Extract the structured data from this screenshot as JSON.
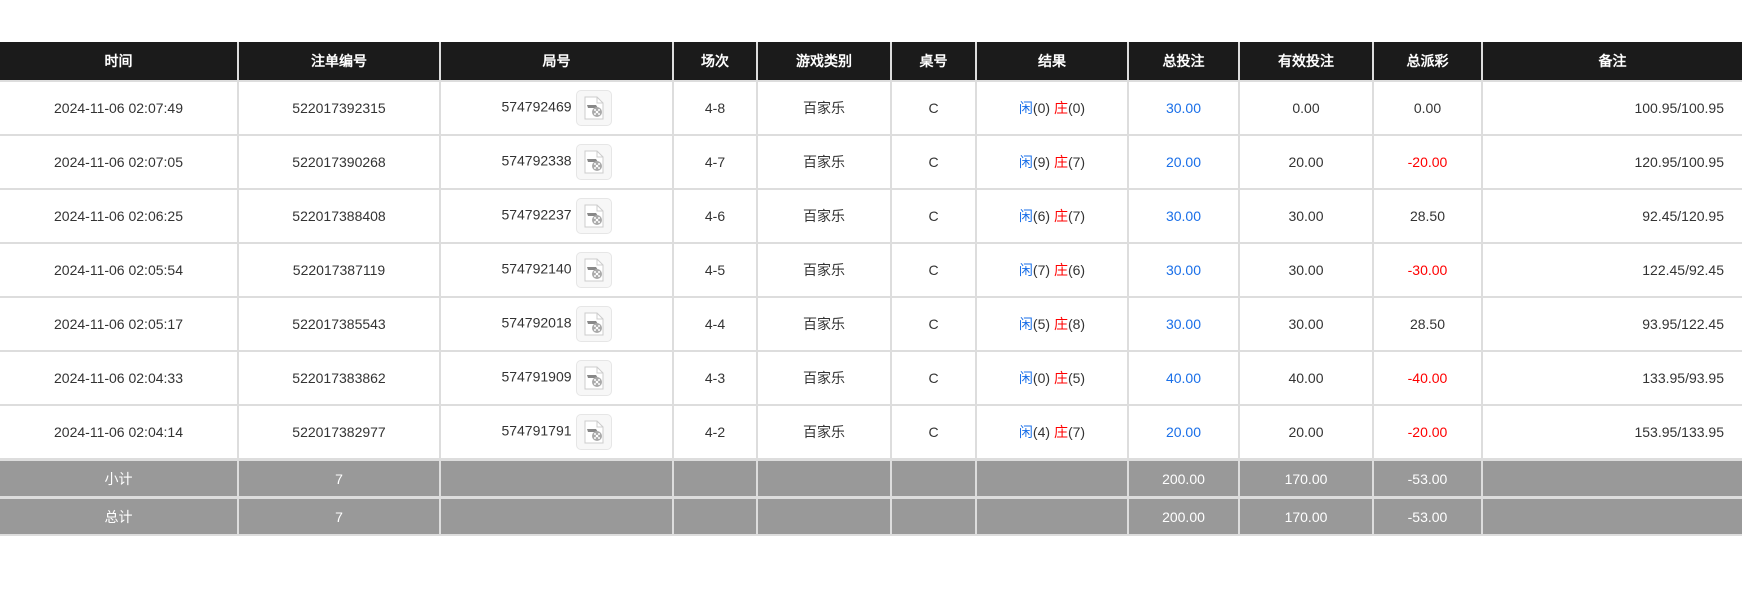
{
  "headers": [
    "时间",
    "注单编号",
    "局号",
    "场次",
    "游戏类别",
    "桌号",
    "结果",
    "总投注",
    "有效投注",
    "总派彩",
    "备注"
  ],
  "colors": {
    "player": "#1a6fe8",
    "banker": "#ff0000",
    "negative": "#ff0000",
    "header_bg": "#1b1b1b",
    "summary_bg": "#999999"
  },
  "rows": [
    {
      "time": "2024-11-06 02:07:49",
      "bet_no": "522017392315",
      "round": "574792469",
      "shoe": "4-8",
      "game": "百家乐",
      "table": "C",
      "player": "闲",
      "player_score": "(0)",
      "banker": "庄",
      "banker_score": "(0)",
      "total_bet": "30.00",
      "valid_bet": "0.00",
      "payout": "0.00",
      "payout_negative": false,
      "note": "100.95/100.95"
    },
    {
      "time": "2024-11-06 02:07:05",
      "bet_no": "522017390268",
      "round": "574792338",
      "shoe": "4-7",
      "game": "百家乐",
      "table": "C",
      "player": "闲",
      "player_score": "(9)",
      "banker": "庄",
      "banker_score": "(7)",
      "total_bet": "20.00",
      "valid_bet": "20.00",
      "payout": "-20.00",
      "payout_negative": true,
      "note": "120.95/100.95"
    },
    {
      "time": "2024-11-06 02:06:25",
      "bet_no": "522017388408",
      "round": "574792237",
      "shoe": "4-6",
      "game": "百家乐",
      "table": "C",
      "player": "闲",
      "player_score": "(6)",
      "banker": "庄",
      "banker_score": "(7)",
      "total_bet": "30.00",
      "valid_bet": "30.00",
      "payout": "28.50",
      "payout_negative": false,
      "note": "92.45/120.95"
    },
    {
      "time": "2024-11-06 02:05:54",
      "bet_no": "522017387119",
      "round": "574792140",
      "shoe": "4-5",
      "game": "百家乐",
      "table": "C",
      "player": "闲",
      "player_score": "(7)",
      "banker": "庄",
      "banker_score": "(6)",
      "total_bet": "30.00",
      "valid_bet": "30.00",
      "payout": "-30.00",
      "payout_negative": true,
      "note": "122.45/92.45"
    },
    {
      "time": "2024-11-06 02:05:17",
      "bet_no": "522017385543",
      "round": "574792018",
      "shoe": "4-4",
      "game": "百家乐",
      "table": "C",
      "player": "闲",
      "player_score": "(5)",
      "banker": "庄",
      "banker_score": "(8)",
      "total_bet": "30.00",
      "valid_bet": "30.00",
      "payout": "28.50",
      "payout_negative": false,
      "note": "93.95/122.45"
    },
    {
      "time": "2024-11-06 02:04:33",
      "bet_no": "522017383862",
      "round": "574791909",
      "shoe": "4-3",
      "game": "百家乐",
      "table": "C",
      "player": "闲",
      "player_score": "(0)",
      "banker": "庄",
      "banker_score": "(5)",
      "total_bet": "40.00",
      "valid_bet": "40.00",
      "payout": "-40.00",
      "payout_negative": true,
      "note": "133.95/93.95"
    },
    {
      "time": "2024-11-06 02:04:14",
      "bet_no": "522017382977",
      "round": "574791791",
      "shoe": "4-2",
      "game": "百家乐",
      "table": "C",
      "player": "闲",
      "player_score": "(4)",
      "banker": "庄",
      "banker_score": "(7)",
      "total_bet": "20.00",
      "valid_bet": "20.00",
      "payout": "-20.00",
      "payout_negative": true,
      "note": "153.95/133.95"
    }
  ],
  "summary": [
    {
      "label": "小计",
      "count": "7",
      "total_bet": "200.00",
      "valid_bet": "170.00",
      "payout": "-53.00"
    },
    {
      "label": "总计",
      "count": "7",
      "total_bet": "200.00",
      "valid_bet": "170.00",
      "payout": "-53.00"
    }
  ]
}
